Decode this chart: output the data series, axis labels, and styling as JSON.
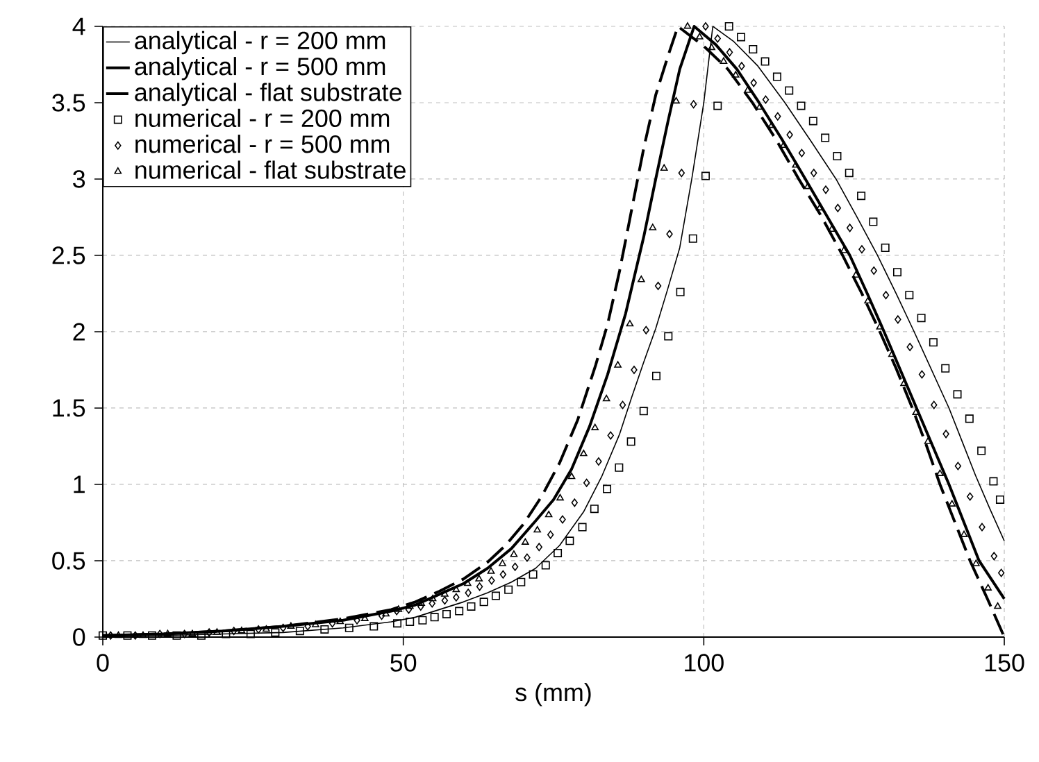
{
  "chart_data": {
    "type": "line",
    "xlabel": "s (mm)",
    "xlim": [
      0,
      150
    ],
    "ylim": [
      0,
      4
    ],
    "xticks": [
      0,
      50,
      100,
      150
    ],
    "yticks": [
      0,
      0.5,
      1,
      1.5,
      2,
      2.5,
      3,
      3.5,
      4
    ],
    "grid": true,
    "legend": "top left",
    "series": [
      {
        "name": "analytical - r = 200 mm",
        "type": "line",
        "line_style": "solid",
        "color": "#000000",
        "x": [
          0,
          10,
          20,
          30,
          40,
          48,
          52,
          56,
          60,
          64,
          68,
          72,
          76,
          80,
          83,
          86,
          88,
          90,
          92,
          94,
          96,
          98,
          100,
          101.5,
          105,
          109,
          113.5,
          117.8,
          122,
          125.5,
          128.9,
          132,
          135,
          137.9,
          140.8,
          143,
          145.2,
          147.6,
          150
        ],
        "values": [
          0.01,
          0.01,
          0.02,
          0.03,
          0.06,
          0.1,
          0.13,
          0.18,
          0.23,
          0.29,
          0.36,
          0.45,
          0.6,
          0.82,
          1.05,
          1.33,
          1.57,
          1.8,
          2.02,
          2.28,
          2.55,
          3.0,
          3.5,
          4.0,
          3.9,
          3.74,
          3.5,
          3.25,
          3.0,
          2.75,
          2.5,
          2.25,
          2.0,
          1.75,
          1.5,
          1.28,
          1.06,
          0.84,
          0.63
        ]
      },
      {
        "name": "analytical - r = 500 mm",
        "type": "line",
        "line_style": "solid",
        "color": "#000000",
        "x": [
          0,
          10,
          20,
          30,
          40,
          48,
          52,
          56,
          60,
          64,
          68,
          72,
          75,
          78,
          81,
          84,
          87,
          90,
          92,
          94,
          96,
          98.4,
          102,
          105.5,
          109.2,
          113,
          116.9,
          120.6,
          124.3,
          127.2,
          130,
          132.7,
          135.4,
          138.1,
          140.8,
          143.3,
          145.8,
          148,
          150
        ],
        "values": [
          0.01,
          0.02,
          0.04,
          0.07,
          0.11,
          0.17,
          0.21,
          0.28,
          0.35,
          0.45,
          0.58,
          0.76,
          0.9,
          1.1,
          1.38,
          1.72,
          2.12,
          2.62,
          3.0,
          3.37,
          3.72,
          4.0,
          3.88,
          3.72,
          3.5,
          3.26,
          3.0,
          2.75,
          2.5,
          2.25,
          2.0,
          1.75,
          1.5,
          1.25,
          1.0,
          0.75,
          0.5,
          0.37,
          0.25
        ]
      },
      {
        "name": "analytical - flat substrate",
        "type": "line",
        "line_style": "dashed",
        "color": "#000000",
        "x": [
          0,
          10,
          20,
          30,
          40,
          48,
          52,
          56,
          60,
          64,
          67,
          70,
          73,
          76,
          79,
          82,
          84,
          86,
          88,
          90,
          92,
          94,
          95.7,
          100,
          104,
          108.1,
          112,
          115.8,
          119.5,
          123.1,
          126.3,
          129.3,
          132,
          134.7,
          137,
          139.3,
          141.8,
          144.3,
          147.2,
          150
        ],
        "values": [
          0.01,
          0.02,
          0.04,
          0.07,
          0.12,
          0.18,
          0.23,
          0.3,
          0.38,
          0.49,
          0.6,
          0.74,
          0.92,
          1.14,
          1.42,
          1.78,
          2.05,
          2.4,
          2.8,
          3.2,
          3.55,
          3.8,
          4.0,
          3.87,
          3.72,
          3.5,
          3.26,
          3.0,
          2.76,
          2.5,
          2.25,
          2.0,
          1.76,
          1.5,
          1.26,
          1.0,
          0.75,
          0.5,
          0.25,
          0
        ]
      },
      {
        "name": "numerical - r = 200 mm",
        "type": "scatter",
        "marker": "square",
        "color": "#000000",
        "x": [
          0,
          4.1,
          8.2,
          12.3,
          16.4,
          20.5,
          24.6,
          28.7,
          32.8,
          36.9,
          41.0,
          45.1,
          49.0,
          51.1,
          53.2,
          55.2,
          57.2,
          59.3,
          61.3,
          63.4,
          65.4,
          67.5,
          69.6,
          71.6,
          73.7,
          75.7,
          77.7,
          79.8,
          81.8,
          83.9,
          85.9,
          87.9,
          90.0,
          92.1,
          94.1,
          96.1,
          98.2,
          100.3,
          102.3,
          104.2,
          106.2,
          108.2,
          110.2,
          112.2,
          114.2,
          116.2,
          118.2,
          120.2,
          122.2,
          124.2,
          126.2,
          128.2,
          130.2,
          132.2,
          134.2,
          136.2,
          138.2,
          140.2,
          142.2,
          144.2,
          146.2,
          148.2,
          149.3
        ],
        "values": [
          0.01,
          0.01,
          0.01,
          0.01,
          0.01,
          0.02,
          0.02,
          0.03,
          0.04,
          0.05,
          0.06,
          0.07,
          0.09,
          0.1,
          0.11,
          0.13,
          0.15,
          0.17,
          0.2,
          0.23,
          0.27,
          0.31,
          0.36,
          0.41,
          0.47,
          0.55,
          0.63,
          0.72,
          0.84,
          0.97,
          1.11,
          1.28,
          1.48,
          1.71,
          1.97,
          2.26,
          2.61,
          3.02,
          3.48,
          4.0,
          3.93,
          3.85,
          3.77,
          3.67,
          3.58,
          3.48,
          3.38,
          3.27,
          3.15,
          3.04,
          2.89,
          2.72,
          2.55,
          2.39,
          2.24,
          2.09,
          1.93,
          1.76,
          1.59,
          1.43,
          1.22,
          1.02,
          0.9
        ]
      },
      {
        "name": "numerical - r = 500 mm",
        "type": "scatter",
        "marker": "diamond",
        "color": "#000000",
        "x": [
          1.3,
          5.4,
          9.5,
          13.6,
          17.7,
          21.8,
          25.9,
          30.0,
          34.1,
          38.2,
          42.3,
          46.4,
          48.9,
          50.9,
          52.9,
          54.8,
          56.9,
          58.8,
          60.8,
          62.7,
          64.7,
          66.6,
          68.6,
          70.6,
          72.6,
          74.5,
          76.5,
          78.5,
          80.5,
          82.5,
          84.5,
          86.5,
          88.4,
          90.4,
          92.4,
          94.3,
          96.3,
          98.3,
          100.3,
          102.3,
          104.3,
          106.3,
          108.3,
          110.3,
          112.3,
          114.3,
          116.3,
          118.3,
          120.3,
          122.3,
          124.3,
          126.3,
          128.3,
          130.3,
          132.3,
          134.3,
          136.3,
          138.3,
          140.3,
          142.3,
          144.3,
          146.3,
          148.3,
          149.5
        ],
        "values": [
          0.01,
          0.01,
          0.02,
          0.02,
          0.03,
          0.04,
          0.05,
          0.06,
          0.07,
          0.09,
          0.11,
          0.14,
          0.17,
          0.18,
          0.2,
          0.22,
          0.24,
          0.26,
          0.29,
          0.33,
          0.37,
          0.41,
          0.46,
          0.52,
          0.59,
          0.67,
          0.77,
          0.88,
          1.01,
          1.15,
          1.32,
          1.52,
          1.75,
          2.01,
          2.3,
          2.64,
          3.04,
          3.49,
          4.0,
          3.92,
          3.83,
          3.74,
          3.63,
          3.52,
          3.41,
          3.29,
          3.17,
          3.04,
          2.93,
          2.81,
          2.68,
          2.54,
          2.4,
          2.24,
          2.08,
          1.9,
          1.72,
          1.52,
          1.33,
          1.12,
          0.92,
          0.72,
          0.53,
          0.42
        ]
      },
      {
        "name": "numerical - flat substrate",
        "type": "scatter",
        "marker": "triangle",
        "color": "#000000",
        "x": [
          2.6,
          6.7,
          10.8,
          14.9,
          19.0,
          23.1,
          27.2,
          31.3,
          35.4,
          39.5,
          43.6,
          47.1,
          49.2,
          51.1,
          53.0,
          54.9,
          56.9,
          58.8,
          60.7,
          62.6,
          64.6,
          66.5,
          68.4,
          70.3,
          72.3,
          74.2,
          76.1,
          78.0,
          80.0,
          81.9,
          83.8,
          85.7,
          87.7,
          89.6,
          91.5,
          93.4,
          95.4,
          97.3,
          99.3,
          101.3,
          103.3,
          105.3,
          107.3,
          109.3,
          111.3,
          113.3,
          115.3,
          117.3,
          119.3,
          121.3,
          123.3,
          125.3,
          127.3,
          129.3,
          131.3,
          133.3,
          135.3,
          137.3,
          139.3,
          141.3,
          143.3,
          145.3,
          147.3,
          148.9
        ],
        "values": [
          0.01,
          0.01,
          0.02,
          0.02,
          0.03,
          0.04,
          0.05,
          0.07,
          0.08,
          0.1,
          0.12,
          0.15,
          0.18,
          0.2,
          0.22,
          0.25,
          0.28,
          0.31,
          0.35,
          0.38,
          0.43,
          0.48,
          0.54,
          0.62,
          0.7,
          0.8,
          0.91,
          1.05,
          1.2,
          1.37,
          1.56,
          1.78,
          2.05,
          2.34,
          2.68,
          3.07,
          3.51,
          4.0,
          3.93,
          3.86,
          3.77,
          3.68,
          3.58,
          3.47,
          3.35,
          3.22,
          3.09,
          2.95,
          2.81,
          2.67,
          2.53,
          2.37,
          2.2,
          2.03,
          1.85,
          1.66,
          1.47,
          1.28,
          1.07,
          0.87,
          0.67,
          0.48,
          0.32,
          0.2
        ]
      }
    ]
  }
}
